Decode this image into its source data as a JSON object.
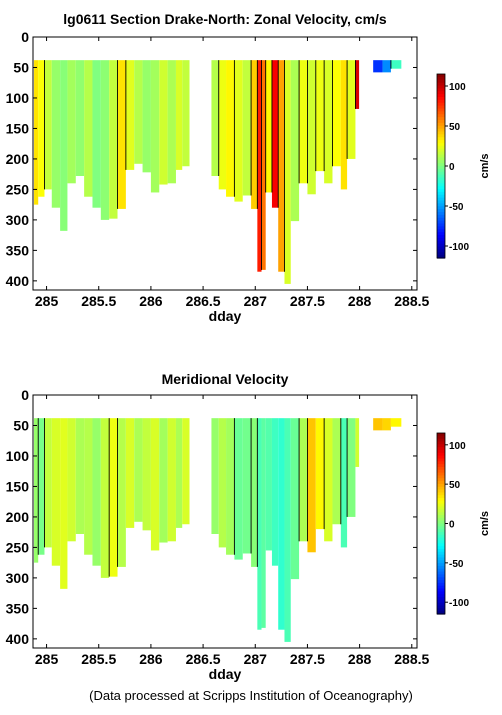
{
  "chart_data": [
    {
      "type": "heatmap",
      "title": "lg0611 Section Drake-North: Zonal Velocity, cm/s",
      "xlabel": "dday",
      "xlim": [
        284.87,
        288.55
      ],
      "ylim": [
        0,
        415
      ],
      "y_reversed": true,
      "xticks": [
        285,
        285.5,
        286,
        286.5,
        287,
        287.5,
        288,
        288.5
      ],
      "xtick_labels": [
        "285",
        "285.5",
        "286",
        "286.5",
        "287",
        "287.5",
        "288",
        "288.5"
      ],
      "yticks": [
        0,
        50,
        100,
        150,
        200,
        250,
        300,
        350,
        400
      ],
      "ytick_labels": [
        "0",
        "50",
        "100",
        "150",
        "200",
        "250",
        "300",
        "350",
        "400"
      ],
      "colorbar": {
        "label": "cm/s",
        "range": [
          -115,
          115
        ],
        "ticks": [
          100,
          50,
          0,
          -50,
          -100
        ],
        "tick_labels": [
          "100",
          "50",
          "0",
          "-50",
          "-100"
        ]
      },
      "columns": [
        {
          "x0": 284.88,
          "x1": 284.92,
          "top": 38,
          "bottom": 275,
          "v": 35
        },
        {
          "x0": 284.92,
          "x1": 284.98,
          "top": 38,
          "bottom": 262,
          "v": 28
        },
        {
          "x0": 284.98,
          "x1": 285.05,
          "top": 38,
          "bottom": 250,
          "v": 15
        },
        {
          "x0": 285.05,
          "x1": 285.13,
          "top": 38,
          "bottom": 280,
          "v": 5
        },
        {
          "x0": 285.13,
          "x1": 285.2,
          "top": 38,
          "bottom": 318,
          "v": 2
        },
        {
          "x0": 285.2,
          "x1": 285.28,
          "top": 38,
          "bottom": 240,
          "v": 8
        },
        {
          "x0": 285.28,
          "x1": 285.36,
          "top": 38,
          "bottom": 228,
          "v": 4
        },
        {
          "x0": 285.36,
          "x1": 285.44,
          "top": 38,
          "bottom": 262,
          "v": 12
        },
        {
          "x0": 285.44,
          "x1": 285.52,
          "top": 38,
          "bottom": 280,
          "v": 0
        },
        {
          "x0": 285.52,
          "x1": 285.6,
          "top": 38,
          "bottom": 300,
          "v": 3
        },
        {
          "x0": 285.6,
          "x1": 285.68,
          "top": 38,
          "bottom": 298,
          "v": 15
        },
        {
          "x0": 285.68,
          "x1": 285.76,
          "top": 38,
          "bottom": 282,
          "v": 35
        },
        {
          "x0": 285.76,
          "x1": 285.84,
          "top": 38,
          "bottom": 218,
          "v": 22
        },
        {
          "x0": 285.84,
          "x1": 285.92,
          "top": 38,
          "bottom": 208,
          "v": 12
        },
        {
          "x0": 285.92,
          "x1": 286.0,
          "top": 38,
          "bottom": 222,
          "v": 5
        },
        {
          "x0": 286.0,
          "x1": 286.08,
          "top": 38,
          "bottom": 255,
          "v": 8
        },
        {
          "x0": 286.08,
          "x1": 286.16,
          "top": 38,
          "bottom": 242,
          "v": 18
        },
        {
          "x0": 286.16,
          "x1": 286.24,
          "top": 38,
          "bottom": 240,
          "v": 10
        },
        {
          "x0": 286.24,
          "x1": 286.3,
          "top": 38,
          "bottom": 218,
          "v": 20
        },
        {
          "x0": 286.3,
          "x1": 286.37,
          "top": 38,
          "bottom": 212,
          "v": 15
        },
        {
          "x0": 286.58,
          "x1": 286.65,
          "top": 38,
          "bottom": 228,
          "v": 12
        },
        {
          "x0": 286.65,
          "x1": 286.72,
          "top": 38,
          "bottom": 250,
          "v": 25
        },
        {
          "x0": 286.72,
          "x1": 286.8,
          "top": 38,
          "bottom": 262,
          "v": 30
        },
        {
          "x0": 286.8,
          "x1": 286.88,
          "top": 38,
          "bottom": 270,
          "v": 22
        },
        {
          "x0": 286.88,
          "x1": 286.96,
          "top": 38,
          "bottom": 260,
          "v": 15
        },
        {
          "x0": 286.96,
          "x1": 287.02,
          "top": 38,
          "bottom": 282,
          "v": 40
        },
        {
          "x0": 287.02,
          "x1": 287.06,
          "top": 38,
          "bottom": 385,
          "v": 80
        },
        {
          "x0": 287.06,
          "x1": 287.1,
          "top": 38,
          "bottom": 382,
          "v": 60
        },
        {
          "x0": 287.1,
          "x1": 287.16,
          "top": 38,
          "bottom": 255,
          "v": 30
        },
        {
          "x0": 287.16,
          "x1": 287.22,
          "top": 38,
          "bottom": 280,
          "v": 88
        },
        {
          "x0": 287.22,
          "x1": 287.28,
          "top": 38,
          "bottom": 385,
          "v": 50
        },
        {
          "x0": 287.28,
          "x1": 287.34,
          "top": 38,
          "bottom": 405,
          "v": 20
        },
        {
          "x0": 287.34,
          "x1": 287.42,
          "top": 38,
          "bottom": 302,
          "v": 10
        },
        {
          "x0": 287.42,
          "x1": 287.5,
          "top": 38,
          "bottom": 240,
          "v": 25
        },
        {
          "x0": 287.5,
          "x1": 287.58,
          "top": 38,
          "bottom": 258,
          "v": 18
        },
        {
          "x0": 287.58,
          "x1": 287.66,
          "top": 38,
          "bottom": 220,
          "v": 25
        },
        {
          "x0": 287.66,
          "x1": 287.74,
          "top": 38,
          "bottom": 240,
          "v": 20
        },
        {
          "x0": 287.74,
          "x1": 287.82,
          "top": 38,
          "bottom": 212,
          "v": 28
        },
        {
          "x0": 287.82,
          "x1": 287.88,
          "top": 38,
          "bottom": 250,
          "v": 35
        },
        {
          "x0": 287.88,
          "x1": 287.96,
          "top": 38,
          "bottom": 200,
          "v": 22
        },
        {
          "x0": 287.96,
          "x1": 287.995,
          "top": 38,
          "bottom": 118,
          "v": 95
        },
        {
          "x0": 288.13,
          "x1": 288.22,
          "top": 38,
          "bottom": 58,
          "v": -75
        },
        {
          "x0": 288.22,
          "x1": 288.3,
          "top": 38,
          "bottom": 58,
          "v": -55
        },
        {
          "x0": 288.3,
          "x1": 288.4,
          "top": 38,
          "bottom": 52,
          "v": -15
        }
      ]
    },
    {
      "type": "heatmap",
      "title": "Meridional Velocity",
      "xlabel": "dday",
      "xlim": [
        284.87,
        288.55
      ],
      "ylim": [
        0,
        415
      ],
      "y_reversed": true,
      "xticks": [
        285,
        285.5,
        286,
        286.5,
        287,
        287.5,
        288,
        288.5
      ],
      "xtick_labels": [
        "285",
        "285.5",
        "286",
        "286.5",
        "287",
        "287.5",
        "288",
        "288.5"
      ],
      "yticks": [
        0,
        50,
        100,
        150,
        200,
        250,
        300,
        350,
        400
      ],
      "ytick_labels": [
        "0",
        "50",
        "100",
        "150",
        "200",
        "250",
        "300",
        "350",
        "400"
      ],
      "colorbar": {
        "label": "cm/s",
        "range": [
          -115,
          115
        ],
        "ticks": [
          100,
          50,
          0,
          -50,
          -100
        ],
        "tick_labels": [
          "100",
          "50",
          "0",
          "-50",
          "-100"
        ]
      },
      "columns": [
        {
          "x0": 284.88,
          "x1": 284.92,
          "top": 38,
          "bottom": 275,
          "v": 5
        },
        {
          "x0": 284.92,
          "x1": 284.98,
          "top": 38,
          "bottom": 262,
          "v": -2
        },
        {
          "x0": 284.98,
          "x1": 285.05,
          "top": 38,
          "bottom": 250,
          "v": 15
        },
        {
          "x0": 285.05,
          "x1": 285.13,
          "top": 38,
          "bottom": 280,
          "v": 20
        },
        {
          "x0": 285.13,
          "x1": 285.2,
          "top": 38,
          "bottom": 318,
          "v": 22
        },
        {
          "x0": 285.2,
          "x1": 285.28,
          "top": 38,
          "bottom": 240,
          "v": 18
        },
        {
          "x0": 285.28,
          "x1": 285.36,
          "top": 38,
          "bottom": 228,
          "v": 10
        },
        {
          "x0": 285.36,
          "x1": 285.44,
          "top": 38,
          "bottom": 262,
          "v": 12
        },
        {
          "x0": 285.44,
          "x1": 285.52,
          "top": 38,
          "bottom": 280,
          "v": 5
        },
        {
          "x0": 285.52,
          "x1": 285.6,
          "top": 38,
          "bottom": 300,
          "v": 15
        },
        {
          "x0": 285.6,
          "x1": 285.68,
          "top": 38,
          "bottom": 298,
          "v": 25
        },
        {
          "x0": 285.68,
          "x1": 285.76,
          "top": 38,
          "bottom": 282,
          "v": 12
        },
        {
          "x0": 285.76,
          "x1": 285.84,
          "top": 38,
          "bottom": 218,
          "v": 20
        },
        {
          "x0": 285.84,
          "x1": 285.92,
          "top": 38,
          "bottom": 208,
          "v": 10
        },
        {
          "x0": 285.92,
          "x1": 286.0,
          "top": 38,
          "bottom": 222,
          "v": 15
        },
        {
          "x0": 286.0,
          "x1": 286.08,
          "top": 38,
          "bottom": 255,
          "v": 20
        },
        {
          "x0": 286.08,
          "x1": 286.16,
          "top": 38,
          "bottom": 242,
          "v": 8
        },
        {
          "x0": 286.16,
          "x1": 286.24,
          "top": 38,
          "bottom": 240,
          "v": 18
        },
        {
          "x0": 286.24,
          "x1": 286.3,
          "top": 38,
          "bottom": 218,
          "v": 10
        },
        {
          "x0": 286.3,
          "x1": 286.37,
          "top": 38,
          "bottom": 212,
          "v": 20
        },
        {
          "x0": 286.58,
          "x1": 286.65,
          "top": 38,
          "bottom": 228,
          "v": 5
        },
        {
          "x0": 286.65,
          "x1": 286.72,
          "top": 38,
          "bottom": 250,
          "v": 12
        },
        {
          "x0": 286.72,
          "x1": 286.8,
          "top": 38,
          "bottom": 262,
          "v": 8
        },
        {
          "x0": 286.8,
          "x1": 286.88,
          "top": 38,
          "bottom": 270,
          "v": -5
        },
        {
          "x0": 286.88,
          "x1": 286.96,
          "top": 38,
          "bottom": 260,
          "v": -3
        },
        {
          "x0": 286.96,
          "x1": 287.02,
          "top": 38,
          "bottom": 282,
          "v": 2
        },
        {
          "x0": 287.02,
          "x1": 287.06,
          "top": 38,
          "bottom": 385,
          "v": -12
        },
        {
          "x0": 287.06,
          "x1": 287.1,
          "top": 38,
          "bottom": 382,
          "v": -8
        },
        {
          "x0": 287.1,
          "x1": 287.16,
          "top": 38,
          "bottom": 255,
          "v": -10
        },
        {
          "x0": 287.16,
          "x1": 287.22,
          "top": 38,
          "bottom": 280,
          "v": -15
        },
        {
          "x0": 287.22,
          "x1": 287.28,
          "top": 38,
          "bottom": 385,
          "v": -18
        },
        {
          "x0": 287.28,
          "x1": 287.34,
          "top": 38,
          "bottom": 405,
          "v": -12
        },
        {
          "x0": 287.34,
          "x1": 287.42,
          "top": 38,
          "bottom": 302,
          "v": -5
        },
        {
          "x0": 287.42,
          "x1": 287.5,
          "top": 38,
          "bottom": 240,
          "v": 10
        },
        {
          "x0": 287.5,
          "x1": 287.58,
          "top": 38,
          "bottom": 258,
          "v": 42
        },
        {
          "x0": 287.58,
          "x1": 287.66,
          "top": 38,
          "bottom": 220,
          "v": 30
        },
        {
          "x0": 287.66,
          "x1": 287.74,
          "top": 38,
          "bottom": 240,
          "v": 20
        },
        {
          "x0": 287.74,
          "x1": 287.82,
          "top": 38,
          "bottom": 212,
          "v": 10
        },
        {
          "x0": 287.82,
          "x1": 287.88,
          "top": 38,
          "bottom": 250,
          "v": -12
        },
        {
          "x0": 287.88,
          "x1": 287.96,
          "top": 38,
          "bottom": 200,
          "v": 0
        },
        {
          "x0": 287.96,
          "x1": 287.995,
          "top": 38,
          "bottom": 118,
          "v": 18
        },
        {
          "x0": 288.13,
          "x1": 288.22,
          "top": 38,
          "bottom": 58,
          "v": 42
        },
        {
          "x0": 288.22,
          "x1": 288.3,
          "top": 38,
          "bottom": 58,
          "v": 38
        },
        {
          "x0": 288.3,
          "x1": 288.4,
          "top": 38,
          "bottom": 52,
          "v": 30
        }
      ]
    }
  ],
  "footer": {
    "credit": "(Data processed at Scripps Institution of Oceanography)"
  }
}
